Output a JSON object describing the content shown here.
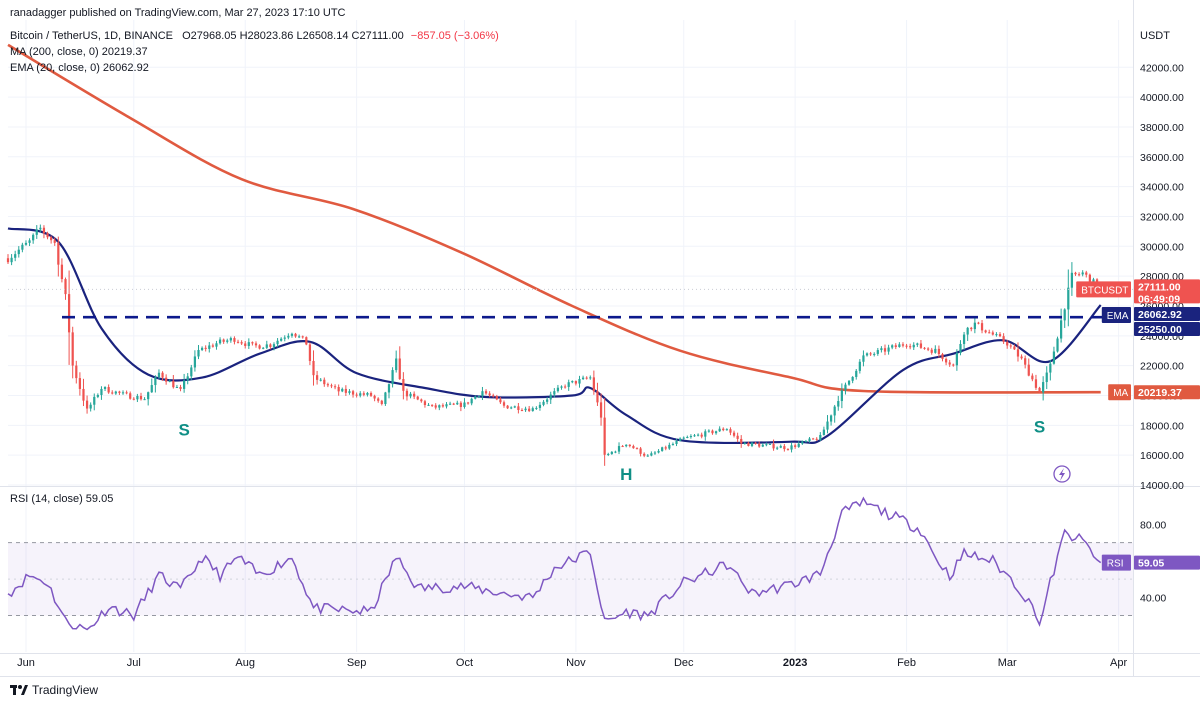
{
  "publisher_line": "ranadagger published on TradingView.com, Mar 27, 2023 17:10 UTC",
  "symbol_line": {
    "name": "Bitcoin / TetherUS, 1D, BINANCE",
    "ohlc": "O27968.05 H28023.86 L26508.14 C27111.00",
    "change": "−857.05 (−3.06%)"
  },
  "indicators": {
    "ma": "MA (200, close, 0)  20219.37",
    "ema": "EMA (20, close, 0)  26062.92",
    "rsi": "RSI (14, close)  59.05"
  },
  "brand": "TradingView",
  "currency": "USDT",
  "colors": {
    "up": "#26a69a",
    "down": "#ef5350",
    "ma": "#e05a40",
    "ema": "#1a237e",
    "rsi": "#7e57c2",
    "dash": "#0d1a8c",
    "pattern_label": "#0f8f86"
  },
  "chart_data": [
    {
      "type": "candlestick",
      "title": "Bitcoin / TetherUS, 1D, BINANCE",
      "x_ticks": [
        "Jun",
        "Jul",
        "Aug",
        "Sep",
        "Oct",
        "Nov",
        "Dec",
        "2023",
        "Feb",
        "Mar",
        "Apr"
      ],
      "y_ticks": [
        "14000.00",
        "16000.00",
        "18000.00",
        "20000.00",
        "22000.00",
        "24000.00",
        "26000.00",
        "28000.00",
        "30000.00",
        "32000.00",
        "34000.00",
        "36000.00",
        "38000.00",
        "40000.00",
        "42000.00"
      ],
      "ylim": [
        14000,
        44500
      ],
      "price_anchors": [
        [
          "2022-05-27",
          29200
        ],
        [
          "2022-06-02",
          30300
        ],
        [
          "2022-06-05",
          31200
        ],
        [
          "2022-06-09",
          30200
        ],
        [
          "2022-06-12",
          26600
        ],
        [
          "2022-06-14",
          22000
        ],
        [
          "2022-06-18",
          19000
        ],
        [
          "2022-06-22",
          20500
        ],
        [
          "2022-06-29",
          20000
        ],
        [
          "2022-07-04",
          19800
        ],
        [
          "2022-07-08",
          21500
        ],
        [
          "2022-07-14",
          20300
        ],
        [
          "2022-07-19",
          23000
        ],
        [
          "2022-07-24",
          23500
        ],
        [
          "2022-07-29",
          23800
        ],
        [
          "2022-08-03",
          23300
        ],
        [
          "2022-08-08",
          23400
        ],
        [
          "2022-08-14",
          24300
        ],
        [
          "2022-08-18",
          23500
        ],
        [
          "2022-08-20",
          21200
        ],
        [
          "2022-08-27",
          20300
        ],
        [
          "2022-09-05",
          20000
        ],
        [
          "2022-09-08",
          19300
        ],
        [
          "2022-09-12",
          22300
        ],
        [
          "2022-09-14",
          20200
        ],
        [
          "2022-09-22",
          19200
        ],
        [
          "2022-10-01",
          19400
        ],
        [
          "2022-10-06",
          20300
        ],
        [
          "2022-10-12",
          19300
        ],
        [
          "2022-10-20",
          19100
        ],
        [
          "2022-10-25",
          20000
        ],
        [
          "2022-10-29",
          20700
        ],
        [
          "2022-11-05",
          21200
        ],
        [
          "2022-11-08",
          18600
        ],
        [
          "2022-11-09",
          15900
        ],
        [
          "2022-11-15",
          16800
        ],
        [
          "2022-11-21",
          15900
        ],
        [
          "2022-11-26",
          16500
        ],
        [
          "2022-12-01",
          17100
        ],
        [
          "2022-12-13",
          17800
        ],
        [
          "2022-12-17",
          16800
        ],
        [
          "2022-12-30",
          16500
        ],
        [
          "2023-01-08",
          17200
        ],
        [
          "2023-01-13",
          19800
        ],
        [
          "2023-01-20",
          22600
        ],
        [
          "2023-02-01",
          23500
        ],
        [
          "2023-02-09",
          23000
        ],
        [
          "2023-02-14",
          22000
        ],
        [
          "2023-02-17",
          24300
        ],
        [
          "2023-02-20",
          24800
        ],
        [
          "2023-03-01",
          23500
        ],
        [
          "2023-03-05",
          22400
        ],
        [
          "2023-03-10",
          20200
        ],
        [
          "2023-03-13",
          22000
        ],
        [
          "2023-03-17",
          26000
        ],
        [
          "2023-03-19",
          28000
        ],
        [
          "2023-03-22",
          28200
        ],
        [
          "2023-03-27",
          27111
        ]
      ],
      "ma200_anchors": [
        [
          "2022-05-27",
          43500
        ],
        [
          "2022-06-30",
          38600
        ],
        [
          "2022-07-31",
          34500
        ],
        [
          "2022-08-31",
          32500
        ],
        [
          "2022-09-30",
          29600
        ],
        [
          "2022-10-31",
          26000
        ],
        [
          "2022-11-30",
          23000
        ],
        [
          "2022-12-31",
          21200
        ],
        [
          "2023-01-20",
          20300
        ],
        [
          "2023-03-27",
          20219.37
        ]
      ],
      "ema20_anchors": [
        [
          "2022-05-27",
          31200
        ],
        [
          "2022-06-10",
          30300
        ],
        [
          "2022-06-22",
          24500
        ],
        [
          "2022-07-05",
          21400
        ],
        [
          "2022-07-20",
          21200
        ],
        [
          "2022-08-05",
          22800
        ],
        [
          "2022-08-19",
          23600
        ],
        [
          "2022-09-01",
          21500
        ],
        [
          "2022-09-20",
          20500
        ],
        [
          "2022-10-07",
          19900
        ],
        [
          "2022-10-31",
          20000
        ],
        [
          "2022-11-05",
          20500
        ],
        [
          "2022-11-15",
          18700
        ],
        [
          "2022-11-30",
          17000
        ],
        [
          "2022-12-31",
          16900
        ],
        [
          "2023-01-10",
          17300
        ],
        [
          "2023-01-31",
          21700
        ],
        [
          "2023-02-14",
          22800
        ],
        [
          "2023-02-28",
          23700
        ],
        [
          "2023-03-13",
          22300
        ],
        [
          "2023-03-27",
          26062.92
        ]
      ],
      "support_level": 25250,
      "pattern_labels": [
        {
          "text": "S",
          "date": "2022-07-15",
          "price": 17800
        },
        {
          "text": "H",
          "date": "2022-11-15",
          "price": 14800
        },
        {
          "text": "S",
          "date": "2023-03-10",
          "price": 18000
        }
      ],
      "price_badges": {
        "last": {
          "label": "BTCUSDT",
          "value": "27111.00",
          "countdown": "06:49:09"
        },
        "ema": {
          "label": "EMA",
          "value": "26062.92"
        },
        "level": {
          "value": "25250.00"
        },
        "ma": {
          "label": "MA",
          "value": "20219.37"
        }
      }
    },
    {
      "type": "line",
      "title": "RSI (14, close)",
      "y_ticks": [
        "80.00",
        "40.00"
      ],
      "ylim": [
        10,
        100
      ],
      "bands": [
        70,
        30
      ],
      "last_value": "59.05",
      "series": [
        {
          "name": "RSI (14, close)",
          "anchors": [
            [
              "2022-05-27",
              42
            ],
            [
              "2022-06-02",
              52
            ],
            [
              "2022-06-07",
              48
            ],
            [
              "2022-06-12",
              27
            ],
            [
              "2022-06-18",
              22
            ],
            [
              "2022-06-24",
              35
            ],
            [
              "2022-07-01",
              30
            ],
            [
              "2022-07-08",
              52
            ],
            [
              "2022-07-14",
              44
            ],
            [
              "2022-07-20",
              62
            ],
            [
              "2022-07-25",
              52
            ],
            [
              "2022-07-30",
              62
            ],
            [
              "2022-08-05",
              52
            ],
            [
              "2022-08-14",
              62
            ],
            [
              "2022-08-20",
              34
            ],
            [
              "2022-08-27",
              33
            ],
            [
              "2022-09-05",
              32
            ],
            [
              "2022-09-12",
              62
            ],
            [
              "2022-09-18",
              45
            ],
            [
              "2022-10-01",
              46
            ],
            [
              "2022-10-12",
              42
            ],
            [
              "2022-10-20",
              40
            ],
            [
              "2022-10-26",
              56
            ],
            [
              "2022-11-05",
              65
            ],
            [
              "2022-11-09",
              26
            ],
            [
              "2022-11-15",
              32
            ],
            [
              "2022-11-21",
              30
            ],
            [
              "2022-12-01",
              48
            ],
            [
              "2022-12-13",
              58
            ],
            [
              "2022-12-20",
              42
            ],
            [
              "2022-12-31",
              47
            ],
            [
              "2023-01-08",
              53
            ],
            [
              "2023-01-14",
              86
            ],
            [
              "2023-01-20",
              92
            ],
            [
              "2023-01-31",
              82
            ],
            [
              "2023-02-05",
              77
            ],
            [
              "2023-02-09",
              62
            ],
            [
              "2023-02-13",
              52
            ],
            [
              "2023-02-17",
              64
            ],
            [
              "2023-02-25",
              60
            ],
            [
              "2023-03-03",
              48
            ],
            [
              "2023-03-09",
              32
            ],
            [
              "2023-03-10",
              25
            ],
            [
              "2023-03-13",
              48
            ],
            [
              "2023-03-17",
              75
            ],
            [
              "2023-03-22",
              71
            ],
            [
              "2023-03-24",
              66
            ],
            [
              "2023-03-27",
              59.05
            ]
          ]
        }
      ]
    }
  ]
}
